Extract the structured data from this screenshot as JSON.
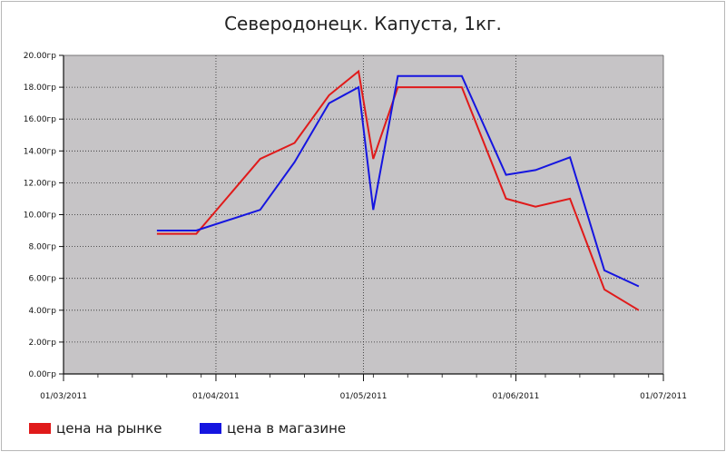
{
  "title": "Северодонецк. Капуста, 1кг.",
  "chart_data": {
    "type": "line",
    "title": "Северодонецк. Капуста, 1кг.",
    "x_axis_type": "date",
    "xlim": [
      "2011-03-01",
      "2011-07-01"
    ],
    "x_ticks": [
      "01/03/2011",
      "01/04/2011",
      "01/05/2011",
      "01/06/2011",
      "01/07/2011"
    ],
    "ylim": [
      0,
      20
    ],
    "y_ticks": [
      "0.00гр",
      "2.00гр",
      "4.00гр",
      "6.00гр",
      "8.00гр",
      "10.00гр",
      "12.00гр",
      "14.00гр",
      "16.00гр",
      "18.00гр",
      "20.00гр"
    ],
    "grid": true,
    "background": "#c6c4c6",
    "legend_position": "bottom-left",
    "series": [
      {
        "name": "цена на рынке",
        "color": "#e01a1a",
        "points": [
          [
            "2011-03-20",
            8.8
          ],
          [
            "2011-03-28",
            8.8
          ],
          [
            "2011-04-10",
            13.5
          ],
          [
            "2011-04-17",
            14.5
          ],
          [
            "2011-04-24",
            17.5
          ],
          [
            "2011-04-30",
            19.0
          ],
          [
            "2011-05-03",
            13.5
          ],
          [
            "2011-05-08",
            18.0
          ],
          [
            "2011-05-15",
            18.0
          ],
          [
            "2011-05-21",
            18.0
          ],
          [
            "2011-05-30",
            11.0
          ],
          [
            "2011-06-05",
            10.5
          ],
          [
            "2011-06-12",
            11.0
          ],
          [
            "2011-06-19",
            5.3
          ],
          [
            "2011-06-26",
            4.0
          ]
        ]
      },
      {
        "name": "цена в магазине",
        "color": "#1515e0",
        "points": [
          [
            "2011-03-20",
            9.0
          ],
          [
            "2011-03-28",
            9.0
          ],
          [
            "2011-04-10",
            10.3
          ],
          [
            "2011-04-17",
            13.3
          ],
          [
            "2011-04-24",
            17.0
          ],
          [
            "2011-04-30",
            18.0
          ],
          [
            "2011-05-03",
            10.3
          ],
          [
            "2011-05-08",
            18.7
          ],
          [
            "2011-05-15",
            18.7
          ],
          [
            "2011-05-21",
            18.7
          ],
          [
            "2011-05-30",
            12.5
          ],
          [
            "2011-06-05",
            12.8
          ],
          [
            "2011-06-12",
            13.6
          ],
          [
            "2011-06-19",
            6.5
          ],
          [
            "2011-06-26",
            5.5
          ]
        ]
      }
    ]
  },
  "legend": {
    "items": [
      {
        "label": "цена на рынке",
        "color": "#e01a1a"
      },
      {
        "label": "цена в магазине",
        "color": "#1515e0"
      }
    ]
  }
}
